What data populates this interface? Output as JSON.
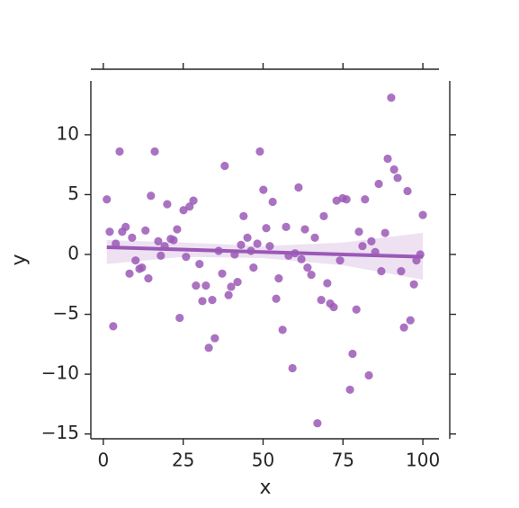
{
  "chart_data": {
    "type": "scatter",
    "x_label": "x",
    "y_label": "y",
    "color": "#9b59b6",
    "x": [
      1.1,
      2,
      3.1,
      3.9,
      5.1,
      5.9,
      7,
      8.2,
      9,
      10.1,
      11.3,
      12.1,
      13.2,
      14.1,
      14.9,
      16.1,
      17.2,
      18,
      19.2,
      20,
      21.1,
      22,
      23.1,
      23.9,
      25.1,
      25.9,
      27,
      28.2,
      29,
      30.1,
      31,
      32.1,
      33,
      34.1,
      34.9,
      36.1,
      37.2,
      38,
      39.2,
      40,
      41.1,
      42,
      43.1,
      43.9,
      45.1,
      46.2,
      47,
      48.2,
      49,
      50.1,
      51,
      52.1,
      53,
      54.1,
      54.9,
      56.1,
      57.2,
      58,
      59.2,
      60,
      61.1,
      62,
      63.1,
      63.9,
      65.1,
      66.2,
      67,
      68.2,
      69,
      70.1,
      71,
      72.1,
      73,
      74.1,
      74.9,
      76.1,
      77.2,
      78,
      79.2,
      80,
      81.1,
      81.9,
      83.1,
      83.9,
      85.1,
      86.2,
      87,
      88.2,
      89,
      90.1,
      91,
      92.1,
      93.2,
      94.1,
      95.2,
      96.1,
      97.2,
      98,
      99.2,
      100
    ],
    "y": [
      4.6,
      1.9,
      -6.0,
      0.9,
      8.6,
      1.9,
      2.3,
      -1.6,
      1.4,
      -0.5,
      -1.2,
      -1.1,
      2.0,
      -2.0,
      4.9,
      8.6,
      1.1,
      -0.1,
      0.7,
      4.2,
      1.3,
      1.2,
      2.1,
      -5.3,
      3.7,
      -0.2,
      4.0,
      4.5,
      -2.6,
      -0.8,
      -3.9,
      -2.6,
      -7.8,
      -3.8,
      -7.0,
      0.3,
      -1.6,
      7.4,
      -3.4,
      -2.7,
      0,
      -2.3,
      0.8,
      3.2,
      1.4,
      0.3,
      -1.1,
      0.9,
      8.6,
      5.4,
      2.2,
      0.7,
      4.4,
      -3.7,
      -2.0,
      -6.3,
      2.3,
      -0.1,
      -9.5,
      0.1,
      5.6,
      -0.4,
      2.1,
      -1.1,
      -1.7,
      1.4,
      -14.1,
      -3.8,
      3.2,
      -2.4,
      -4.1,
      -4.4,
      4.5,
      -0.5,
      4.7,
      4.6,
      -11.3,
      -8.3,
      -4.6,
      1.9,
      0.7,
      4.6,
      -10.1,
      1.1,
      0.2,
      5.9,
      -1.4,
      1.8,
      8.0,
      13.1,
      7.1,
      6.4,
      -1.4,
      -6.1,
      5.3,
      -5.5,
      -2.5,
      -0.5,
      0.0,
      3.3
    ],
    "fit": {
      "x": [
        1.1,
        100
      ],
      "y": [
        0.6,
        -0.2
      ]
    },
    "ci": {
      "x": [
        1.1,
        25,
        50,
        75,
        100
      ],
      "lower": [
        -0.8,
        -0.2,
        -0.3,
        -0.9,
        -2.1
      ],
      "upper": [
        1.2,
        1.0,
        0.7,
        1.0,
        1.8
      ]
    },
    "xlim": [
      -3.9,
      105.6
    ],
    "ylim": [
      -15.4,
      14.5
    ],
    "xticks": [
      0,
      25,
      50,
      75,
      100
    ],
    "yticks": [
      {
        "value": -15,
        "label": "−15"
      },
      {
        "value": -10,
        "label": "−10"
      },
      {
        "value": -5,
        "label": "−5"
      },
      0,
      5,
      10
    ]
  }
}
